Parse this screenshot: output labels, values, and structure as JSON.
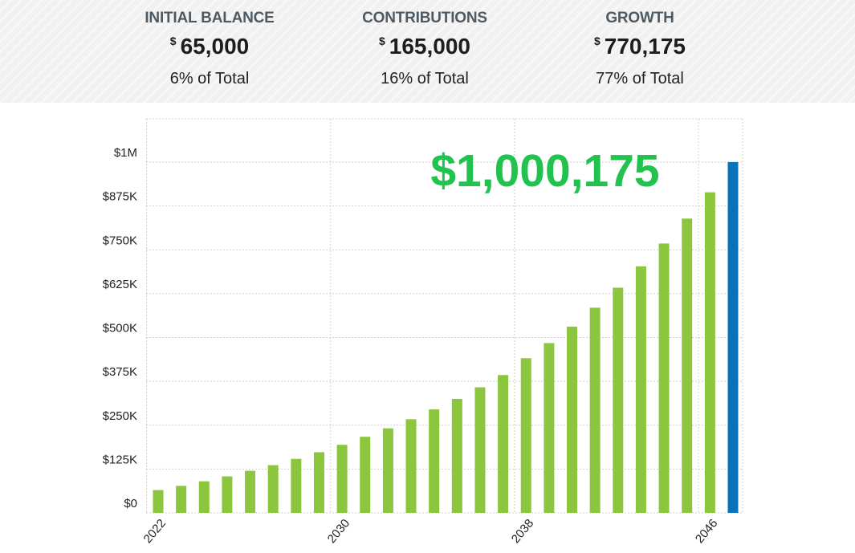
{
  "summary": {
    "initial": {
      "label": "INITIAL BALANCE",
      "currency": "$",
      "amount": "65,000",
      "percent": "6% of Total"
    },
    "contributions": {
      "label": "CONTRIBUTIONS",
      "currency": "$",
      "amount": "165,000",
      "percent": "16% of Total"
    },
    "growth": {
      "label": "GROWTH",
      "currency": "$",
      "amount": "770,175",
      "percent": "77% of Total"
    }
  },
  "chart_data": {
    "type": "bar",
    "total_label": "$1,000,175",
    "categories": [
      2022,
      2023,
      2024,
      2025,
      2026,
      2027,
      2028,
      2029,
      2030,
      2031,
      2032,
      2033,
      2034,
      2035,
      2036,
      2037,
      2038,
      2039,
      2040,
      2041,
      2042,
      2043,
      2044,
      2045,
      2046,
      2047
    ],
    "values": [
      65000,
      77000,
      90000,
      104000,
      120000,
      136000,
      154000,
      173000,
      194000,
      217000,
      241000,
      267000,
      295000,
      325000,
      358000,
      393000,
      441000,
      484000,
      531000,
      585000,
      642000,
      703000,
      768000,
      839000,
      914000,
      1000175
    ],
    "highlight_index": 25,
    "colors": {
      "bar": "#8cc63f",
      "highlight": "#0a72b8",
      "total_text": "#22c24f",
      "grid": "#cfcfcf"
    },
    "y_ticks": [
      {
        "value": 0,
        "label": "$0"
      },
      {
        "value": 125000,
        "label": "$125K"
      },
      {
        "value": 250000,
        "label": "$250K"
      },
      {
        "value": 375000,
        "label": "$375K"
      },
      {
        "value": 500000,
        "label": "$500K"
      },
      {
        "value": 625000,
        "label": "$625K"
      },
      {
        "value": 750000,
        "label": "$750K"
      },
      {
        "value": 875000,
        "label": "$875K"
      },
      {
        "value": 1000000,
        "label": "$1M"
      }
    ],
    "x_ticks": [
      {
        "value": 2022,
        "label": "2022"
      },
      {
        "value": 2030,
        "label": "2030"
      },
      {
        "value": 2038,
        "label": "2038"
      },
      {
        "value": 2046,
        "label": "2046"
      }
    ],
    "ylim": [
      0,
      1000000
    ],
    "grid": true
  }
}
